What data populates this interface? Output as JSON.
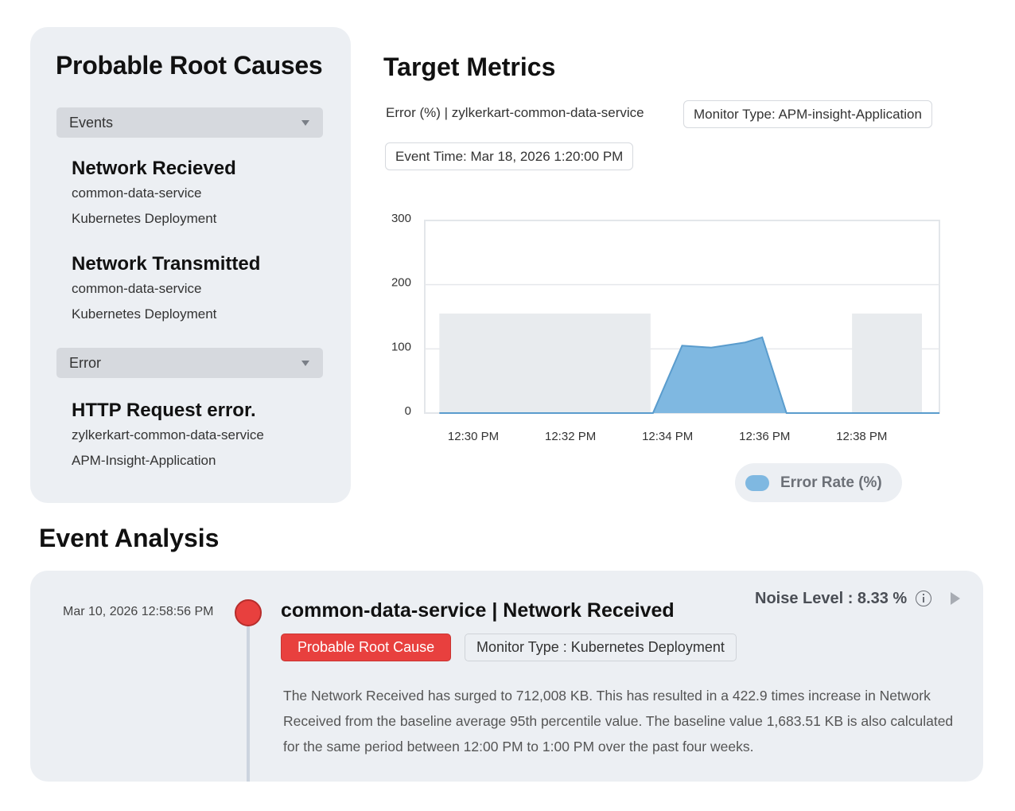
{
  "root_causes": {
    "title": "Probable Root Causes",
    "groups": [
      {
        "dropdown_label": "Events",
        "items": [
          {
            "name": "Network Recieved",
            "service": "common-data-service",
            "type": "Kubernetes Deployment"
          },
          {
            "name": "Network Transmitted",
            "service": "common-data-service",
            "type": "Kubernetes Deployment"
          }
        ]
      },
      {
        "dropdown_label": "Error",
        "items": [
          {
            "name": "HTTP Request error.",
            "service": "zylkerkart-common-data-service",
            "type": "APM-Insight-Application"
          }
        ]
      }
    ]
  },
  "target_metrics": {
    "title": "Target Metrics",
    "metric": "Error (%) |  zylkerkart-common-data-service",
    "monitor_type": "Monitor Type: APM-insight-Application",
    "event_time": "Event Time: Mar 18, 2026 1:20:00 PM",
    "legend_label": "Error Rate (%)"
  },
  "chart_data": {
    "type": "area",
    "xlabel": "",
    "ylabel": "",
    "x_range_minutes": [
      12.5,
      12.99
    ],
    "ylim": [
      0,
      300
    ],
    "y_ticks": [
      "0",
      "100",
      "200",
      "300"
    ],
    "x_ticks": [
      "12:30 PM",
      "12:32 PM",
      "12:34 PM",
      "12:36 PM",
      "12:38 PM"
    ],
    "x_tick_minutes": [
      30,
      32,
      34,
      36,
      38
    ],
    "x_domain_minutes": [
      29,
      39.6
    ],
    "grid": true,
    "series": [
      {
        "name": "Error Rate (%)",
        "color": "#7fb8e1",
        "stroke": "#5a9ccd",
        "points": [
          {
            "x": 29.3,
            "y": 0
          },
          {
            "x": 33.7,
            "y": 0
          },
          {
            "x": 34.3,
            "y": 105
          },
          {
            "x": 34.9,
            "y": 102
          },
          {
            "x": 35.6,
            "y": 110
          },
          {
            "x": 35.95,
            "y": 118
          },
          {
            "x": 36.45,
            "y": 0
          },
          {
            "x": 39.6,
            "y": 0
          }
        ]
      }
    ],
    "shaded_bands": [
      {
        "x_start": 29.3,
        "x_end": 33.65,
        "y": 155
      },
      {
        "x_start": 37.8,
        "x_end": 40.0,
        "y": 155
      }
    ],
    "band_color": "#e8ebee"
  },
  "event_analysis": {
    "title": "Event Analysis",
    "timestamp": "Mar 10, 2026 12:58:56 PM",
    "headline": "common-data-service | Network Received",
    "noise_level": "Noise Level : 8.33 %",
    "tag_root_cause": "Probable Root Cause",
    "tag_monitor_type": "Monitor Type : Kubernetes Deployment",
    "description": "The Network Received has surged to 712,008 KB. This has resulted in a 422.9 times increase in Network Received from the baseline average 95th percentile value. The baseline value 1,683.51 KB is also calculated for the same period between 12:00 PM to 1:00 PM over the past four weeks."
  }
}
